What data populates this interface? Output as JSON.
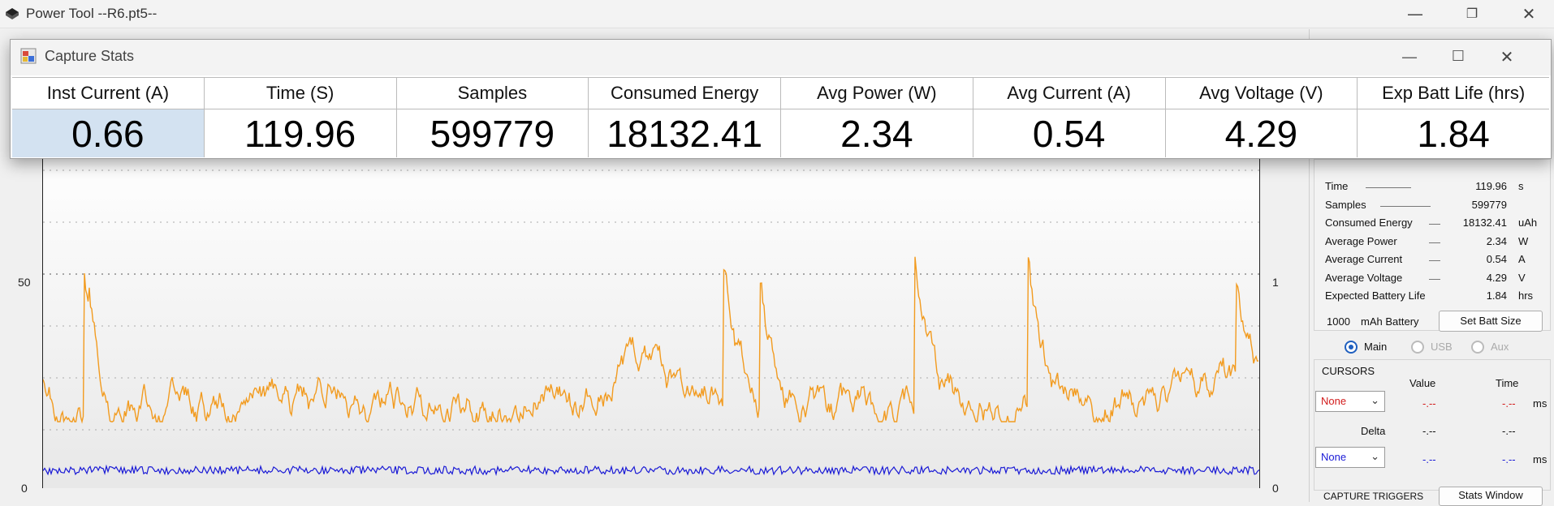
{
  "main_window": {
    "title": "Power Tool --R6.pt5--"
  },
  "dialog": {
    "title": "Capture Stats",
    "columns": [
      {
        "header": "Inst Current (A)",
        "value": "0.66"
      },
      {
        "header": "Time (S)",
        "value": "119.96"
      },
      {
        "header": "Samples",
        "value": "599779"
      },
      {
        "header": "Consumed Energy",
        "value": "18132.41"
      },
      {
        "header": "Avg Power (W)",
        "value": "2.34"
      },
      {
        "header": "Avg Current (A)",
        "value": "0.54"
      },
      {
        "header": "Avg Voltage (V)",
        "value": "4.29"
      },
      {
        "header": "Exp Batt Life (hrs)",
        "value": "1.84"
      }
    ]
  },
  "plot": {
    "left_axis_ticks": [
      "50",
      "0"
    ],
    "right_axis_ticks": [
      "1",
      "0"
    ],
    "series_colors": {
      "main": "#f29b1f",
      "secondary": "#1a1ad6"
    }
  },
  "side_panel": {
    "stats": [
      {
        "label": "Time",
        "value": "119.96",
        "unit": "s"
      },
      {
        "label": "Samples",
        "value": "599779",
        "unit": ""
      },
      {
        "label": "Consumed Energy",
        "value": "18132.41",
        "unit": "uAh"
      },
      {
        "label": "Average Power",
        "value": "2.34",
        "unit": "W"
      },
      {
        "label": "Average Current",
        "value": "0.54",
        "unit": "A"
      },
      {
        "label": "Average Voltage",
        "value": "4.29",
        "unit": "V"
      },
      {
        "label": "Expected Battery Life",
        "value": "1.84",
        "unit": "hrs"
      }
    ],
    "battery": {
      "capacity": "1000",
      "unit_label": "mAh Battery",
      "button": "Set Batt Size"
    },
    "channels": [
      {
        "label": "Main",
        "selected": true
      },
      {
        "label": "USB",
        "selected": false
      },
      {
        "label": "Aux",
        "selected": false
      }
    ],
    "cursors": {
      "title": "CURSORS",
      "value_header": "Value",
      "time_header": "Time",
      "cursor1": {
        "select": "None",
        "value": "-.--",
        "time": "-.--",
        "unit": "ms"
      },
      "delta": {
        "label": "Delta",
        "value": "-.--",
        "time": "-.--"
      },
      "cursor2": {
        "select": "None",
        "value": "-.--",
        "time": "-.--",
        "unit": "ms"
      }
    },
    "triggers": {
      "title": "CAPTURE TRIGGERS",
      "button": "Stats Window"
    }
  }
}
